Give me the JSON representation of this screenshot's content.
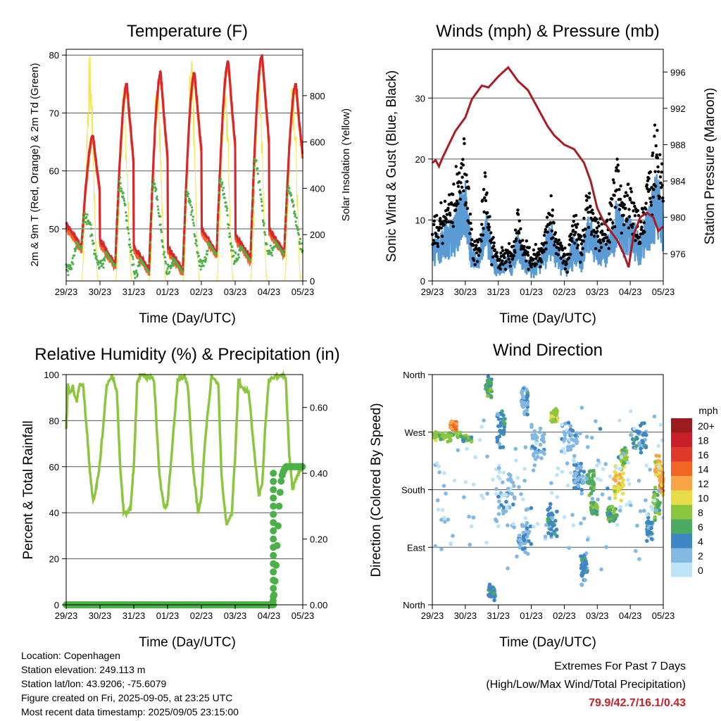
{
  "chart_data": [
    {
      "type": "line",
      "title": "Temperature (F)",
      "xlabel": "Time (Day/UTC)",
      "ylabel": "2m & 9m T (Red, Orange) & 2m Td (Green)",
      "y2label": "Solar Insolation (Yellow)",
      "x_ticks": [
        "29/23",
        "30/23",
        "31/23",
        "01/23",
        "02/23",
        "03/23",
        "04/23",
        "05/23"
      ],
      "ylim": [
        41,
        81
      ],
      "y_ticks": [
        50,
        60,
        70,
        80
      ],
      "y2lim": [
        0,
        1000
      ],
      "y2_ticks": [
        0,
        200,
        400,
        600,
        800
      ],
      "colors": {
        "t2m": "#d8262a",
        "t9m": "#f26522",
        "td": "#4cb048",
        "solar": "#f5e34a"
      },
      "series": [
        {
          "values_daily_max": [
            66,
            75,
            77,
            77,
            79,
            80,
            75
          ]
        },
        {
          "values_daily_min": [
            47,
            44,
            43,
            43,
            46,
            45,
            46
          ]
        },
        {
          "dewpoint_daily_range": [
            [
              43,
              52
            ],
            [
              44,
              58
            ],
            [
              42,
              58
            ],
            [
              43,
              56
            ],
            [
              44,
              58
            ],
            [
              45,
              62
            ],
            [
              46,
              57
            ]
          ]
        },
        {
          "solar_daily_peak": [
            990,
            850,
            970,
            980,
            970,
            970,
            960
          ]
        }
      ]
    },
    {
      "type": "scatter",
      "title": "Winds (mph) & Pressure (mb)",
      "xlabel": "Time (Day/UTC)",
      "ylabel": "Sonic Wind & Gust (Blue, Black)",
      "y2label": "Station Pressure (Maroon)",
      "x_ticks": [
        "29/23",
        "30/23",
        "31/23",
        "01/23",
        "02/23",
        "03/23",
        "04/23",
        "05/23"
      ],
      "ylim": [
        0,
        38
      ],
      "y_ticks": [
        0,
        10,
        20,
        30
      ],
      "y2_ticks": [
        976,
        980,
        984,
        988,
        992,
        996
      ],
      "y2lim": [
        973,
        998.5
      ],
      "colors": {
        "wind": "#5b9bd5",
        "gust": "#000000",
        "pressure": "#a81c24"
      },
      "pressure": {
        "x": [
          0,
          0.1,
          0.2,
          0.3,
          0.5,
          0.7,
          1.0,
          1.2,
          1.5,
          1.7,
          2.0,
          2.3,
          2.6,
          2.9,
          3.2,
          3.5,
          3.7,
          4.0,
          4.3,
          4.6,
          4.8,
          5.0,
          5.2,
          5.4,
          5.6,
          5.8,
          5.95,
          6.1,
          6.3,
          6.5,
          6.7,
          6.85,
          7.0
        ],
        "y": [
          986,
          986.3,
          985.6,
          986.5,
          988,
          989.5,
          991,
          993,
          994.5,
          994.3,
          995.5,
          996.5,
          995,
          994,
          992,
          990,
          989,
          988,
          987.5,
          986,
          984,
          981,
          979.5,
          978.5,
          977.5,
          976,
          974.5,
          978,
          980,
          980.5,
          980,
          978.5,
          979
        ]
      }
    },
    {
      "type": "line",
      "title": "Relative Humidity (%) & Precipitation (in)",
      "xlabel": "Time (Day/UTC)",
      "ylabel": "Percent & Total Rainfall",
      "x_ticks": [
        "29/23",
        "30/23",
        "31/23",
        "01/23",
        "02/23",
        "03/23",
        "04/23",
        "05/23"
      ],
      "ylim": [
        0,
        100
      ],
      "y_ticks": [
        0,
        20,
        40,
        60,
        80,
        100
      ],
      "y2_ticks": [
        "0.00",
        "0.20",
        "0.40",
        "0.60"
      ],
      "y2lim": [
        0,
        0.7
      ],
      "colors": {
        "rh": "#8cc63f",
        "precip": "#4cb048"
      },
      "rh": {
        "x": [
          0,
          0.05,
          0.1,
          0.2,
          0.3,
          0.4,
          0.5,
          0.6,
          0.7,
          0.8,
          0.9,
          1.0,
          1.2,
          1.35,
          1.5,
          1.6,
          1.7,
          1.9,
          2.0,
          2.1,
          2.2,
          2.4,
          2.6,
          2.75,
          2.9,
          3.0,
          3.1,
          3.3,
          3.5,
          3.6,
          3.75,
          3.9,
          4.0,
          4.1,
          4.3,
          4.5,
          4.6,
          4.75,
          4.9,
          5.0,
          5.1,
          5.2,
          5.4,
          5.6,
          5.7,
          5.8,
          5.9,
          6.0,
          6.2,
          6.4,
          6.5,
          6.6,
          6.7,
          6.8,
          6.9,
          7.0
        ],
        "y": [
          76,
          96,
          92,
          94,
          88,
          96,
          95,
          78,
          58,
          45,
          52,
          62,
          95,
          100,
          92,
          60,
          40,
          41,
          60,
          96,
          100,
          99,
          98,
          58,
          42,
          44,
          62,
          98,
          99,
          95,
          60,
          40,
          46,
          70,
          99,
          96,
          55,
          34,
          40,
          65,
          98,
          94,
          92,
          62,
          48,
          52,
          80,
          98,
          99,
          100,
          98,
          65,
          50,
          55,
          58,
          60
        ]
      },
      "precip": {
        "x": [
          0,
          6.1,
          6.15,
          6.2,
          6.25,
          6.3,
          6.35,
          6.4,
          6.5,
          7.0
        ],
        "y": [
          0,
          0,
          0.03,
          0.1,
          0.2,
          0.3,
          0.37,
          0.4,
          0.42,
          0.42
        ]
      }
    },
    {
      "type": "scatter",
      "title": "Wind Direction",
      "xlabel": "Time (Day/UTC)",
      "ylabel": "Direction (Colored By Speed)",
      "x_ticks": [
        "29/23",
        "30/23",
        "31/23",
        "01/23",
        "02/23",
        "03/23",
        "04/23",
        "05/23"
      ],
      "y_ticks": [
        "North",
        "East",
        "South",
        "West",
        "North"
      ],
      "ylim": [
        0,
        360
      ],
      "legend": {
        "title": "mph",
        "labels": [
          "20+",
          "18",
          "16",
          "14",
          "12",
          "10",
          "8",
          "6",
          "4",
          "2",
          "0"
        ],
        "colors": [
          "#9b1b1f",
          "#c8202a",
          "#e03a2c",
          "#f26522",
          "#f7a545",
          "#e8dc4a",
          "#8cc63f",
          "#4caa64",
          "#3f86c4",
          "#82b8e2",
          "#bfe3f6"
        ]
      }
    }
  ],
  "info": {
    "location": "Location: Copenhagen",
    "elevation": "Station elevation: 249.113 m",
    "latlon": "Station lat/lon: 43.9206; -75.6079",
    "created": "Figure created on Fri, 2025-09-05, at 23:25 UTC",
    "recent": "Most recent data timestamp: 2025/09/05 23:15:00"
  },
  "extremes": {
    "heading": "Extremes For Past 7 Days",
    "sub": "(High/Low/Max Wind/Total Precipitation)",
    "values": "79.9/42.7/16.1/0.43"
  }
}
